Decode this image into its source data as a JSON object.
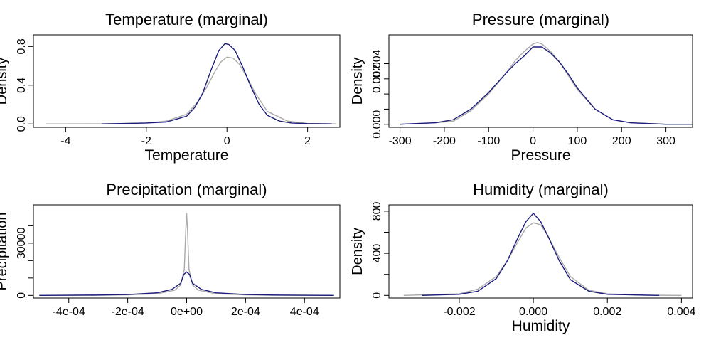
{
  "colors": {
    "series_1": "#1b1b7a",
    "series_2": "#aaaaaa",
    "axis": "#000000"
  },
  "chart_data": [
    {
      "type": "line",
      "title": "Temperature (marginal)",
      "xlabel": "Temperature",
      "ylabel": "Density",
      "xlim": [
        -4.8,
        2.8
      ],
      "ylim": [
        -0.035,
        0.92
      ],
      "xticks": [
        -4,
        -2,
        0,
        2
      ],
      "xtick_labels": [
        "-4",
        "-2",
        "0",
        "2"
      ],
      "yticks": [
        0.0,
        0.4,
        0.8
      ],
      "ytick_labels": [
        "0.0",
        "0.4",
        "0.8"
      ],
      "grid": false,
      "series": [
        {
          "color": "#aaaaaa",
          "x": [
            -4.5,
            -3,
            -2,
            -1.5,
            -1,
            -0.7,
            -0.5,
            -0.3,
            -0.15,
            0,
            0.15,
            0.3,
            0.5,
            0.7,
            1,
            1.5,
            2,
            2.7
          ],
          "y": [
            0,
            0.001,
            0.01,
            0.03,
            0.1,
            0.24,
            0.38,
            0.54,
            0.64,
            0.69,
            0.68,
            0.62,
            0.48,
            0.32,
            0.13,
            0.03,
            0.005,
            0
          ]
        },
        {
          "color": "#1b1b7a",
          "x": [
            -3.1,
            -2.5,
            -2,
            -1.5,
            -1,
            -0.8,
            -0.6,
            -0.4,
            -0.2,
            -0.05,
            0.05,
            0.2,
            0.4,
            0.6,
            0.8,
            1,
            1.3,
            1.6,
            2,
            2.6
          ],
          "y": [
            0,
            0.005,
            0.01,
            0.02,
            0.08,
            0.17,
            0.32,
            0.55,
            0.76,
            0.83,
            0.82,
            0.76,
            0.58,
            0.38,
            0.2,
            0.09,
            0.03,
            0.01,
            0.003,
            0
          ]
        }
      ]
    },
    {
      "type": "line",
      "title": "Pressure (marginal)",
      "xlabel": "Pressure",
      "ylabel": "Density",
      "xlim": [
        -325,
        360
      ],
      "ylim": [
        -0.0002,
        0.0059
      ],
      "xticks": [
        -300,
        -200,
        -100,
        0,
        100,
        200,
        300
      ],
      "xtick_labels": [
        "-300",
        "-200",
        "-100",
        "0",
        "100",
        "200",
        "300"
      ],
      "yticks": [
        0.0,
        0.001,
        0.002,
        0.003,
        0.004
      ],
      "ytick_labels": [
        "0.000",
        "",
        "",
        "0.002",
        "0.004"
      ],
      "grid": false,
      "series": [
        {
          "color": "#aaaaaa",
          "x": [
            -300,
            -220,
            -180,
            -140,
            -100,
            -60,
            -40,
            -20,
            0,
            10,
            20,
            40,
            60,
            80,
            100,
            140,
            180,
            220,
            300,
            360
          ],
          "y": [
            0,
            0.0001,
            0.0002,
            0.0009,
            0.002,
            0.0034,
            0.0042,
            0.0048,
            0.0053,
            0.0054,
            0.0053,
            0.0048,
            0.0041,
            0.0032,
            0.0023,
            0.001,
            0.0003,
            0.0001,
            0,
            0
          ]
        },
        {
          "color": "#1b1b7a",
          "x": [
            -300,
            -220,
            -180,
            -140,
            -100,
            -60,
            -40,
            -20,
            0,
            20,
            40,
            60,
            80,
            100,
            140,
            180,
            220,
            300,
            360
          ],
          "y": [
            0,
            0.0001,
            0.0003,
            0.001,
            0.0021,
            0.0034,
            0.004,
            0.0045,
            0.0051,
            0.0051,
            0.0047,
            0.0041,
            0.0033,
            0.0024,
            0.001,
            0.0003,
            0.0001,
            0,
            0
          ]
        }
      ]
    },
    {
      "type": "line",
      "title": "Precipitation (marginal)",
      "xlabel": "",
      "ylabel": "Precipitation",
      "xlim": [
        -0.00052,
        0.00052
      ],
      "ylim": [
        -1500,
        52000
      ],
      "xticks": [
        -0.0004,
        -0.0002,
        0,
        0.0002,
        0.0004
      ],
      "xtick_labels": [
        "-4e-04",
        "-2e-04",
        "0e+00",
        "2e-04",
        "4e-04"
      ],
      "yticks": [
        0,
        10000,
        20000,
        30000,
        40000
      ],
      "ytick_labels": [
        "0",
        "",
        "",
        "30000",
        ""
      ],
      "grid": false,
      "series": [
        {
          "color": "#aaaaaa",
          "x": [
            -0.0005,
            -0.0003,
            -0.0002,
            -0.0001,
            -4e-05,
            -2e-05,
            -8e-06,
            -3e-06,
            0,
            3e-06,
            8e-06,
            2e-05,
            4e-05,
            0.0001,
            0.0002,
            0.0003,
            0.0005
          ],
          "y": [
            0,
            100,
            300,
            900,
            3000,
            6000,
            15000,
            38000,
            47000,
            38000,
            15000,
            6000,
            3000,
            900,
            300,
            100,
            0
          ]
        },
        {
          "color": "#1b1b7a",
          "x": [
            -0.0005,
            -0.0003,
            -0.0002,
            -0.0001,
            -5e-05,
            -2e-05,
            -1e-05,
            0,
            1e-05,
            2e-05,
            5e-05,
            0.0001,
            0.0002,
            0.0003,
            0.0005
          ],
          "y": [
            0,
            200,
            500,
            1500,
            3500,
            7000,
            12000,
            13500,
            12000,
            7000,
            3500,
            1500,
            500,
            200,
            0
          ]
        }
      ]
    },
    {
      "type": "line",
      "title": "Humidity (marginal)",
      "xlabel": "Humidity",
      "ylabel": "Density",
      "xlim": [
        -0.0039,
        0.0043
      ],
      "ylim": [
        -25,
        860
      ],
      "xticks": [
        -0.002,
        0,
        0.002,
        0.004
      ],
      "xtick_labels": [
        "-0.002",
        "0.000",
        "0.002",
        "0.004"
      ],
      "yticks": [
        0,
        200,
        400,
        600,
        800
      ],
      "ytick_labels": [
        "0",
        "",
        "400",
        "",
        "800"
      ],
      "grid": false,
      "series": [
        {
          "color": "#aaaaaa",
          "x": [
            -0.0035,
            -0.002,
            -0.0015,
            -0.001,
            -0.0007,
            -0.0004,
            -0.0002,
            0,
            0.0002,
            0.0004,
            0.0007,
            0.001,
            0.0015,
            0.002,
            0.003,
            0.004
          ],
          "y": [
            0,
            15,
            60,
            180,
            330,
            520,
            640,
            690,
            670,
            560,
            360,
            180,
            50,
            15,
            2,
            0
          ]
        },
        {
          "color": "#1b1b7a",
          "x": [
            -0.003,
            -0.002,
            -0.0015,
            -0.001,
            -0.0007,
            -0.0004,
            -0.0002,
            0,
            0.0002,
            0.0004,
            0.0007,
            0.001,
            0.0015,
            0.002,
            0.0034
          ],
          "y": [
            0,
            10,
            40,
            160,
            330,
            560,
            700,
            780,
            700,
            560,
            330,
            150,
            40,
            10,
            0
          ]
        }
      ]
    }
  ]
}
